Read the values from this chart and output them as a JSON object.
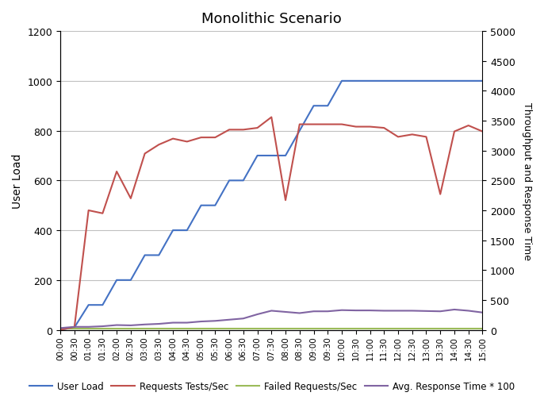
{
  "title": "Monolithic Scenario",
  "ylabel_left": "User Load",
  "ylabel_right": "Throughput and Response Time",
  "ylim_left": [
    0,
    1200
  ],
  "ylim_right": [
    0,
    5000
  ],
  "yticks_left": [
    0,
    200,
    400,
    600,
    800,
    1000,
    1200
  ],
  "yticks_right": [
    0,
    500,
    1000,
    1500,
    2000,
    2500,
    3000,
    3500,
    4000,
    4500,
    5000
  ],
  "time_labels": [
    "00:00",
    "00:30",
    "01:00",
    "01:30",
    "02:00",
    "02:30",
    "03:00",
    "03:30",
    "04:00",
    "04:30",
    "05:00",
    "05:30",
    "06:00",
    "06:30",
    "07:00",
    "07:30",
    "08:00",
    "08:30",
    "09:00",
    "09:30",
    "10:00",
    "10:30",
    "11:00",
    "11:30",
    "12:00",
    "12:30",
    "13:00",
    "13:30",
    "14:00",
    "14:30",
    "15:00"
  ],
  "user_load": [
    0,
    10,
    100,
    100,
    200,
    200,
    300,
    300,
    400,
    400,
    500,
    500,
    600,
    600,
    700,
    700,
    700,
    800,
    900,
    900,
    1000,
    1000,
    1000,
    1000,
    1000,
    1000,
    1000,
    1000,
    1000,
    1000,
    1000
  ],
  "requests_per_sec": [
    0,
    50,
    2000,
    1950,
    2650,
    2200,
    2950,
    3100,
    3200,
    3150,
    3220,
    3220,
    3350,
    3350,
    3380,
    3560,
    2170,
    3440,
    3440,
    3440,
    3440,
    3400,
    3400,
    3380,
    3230,
    3270,
    3230,
    2270,
    3320,
    3420,
    3320
  ],
  "failed_requests": [
    5,
    5,
    5,
    5,
    5,
    5,
    5,
    5,
    5,
    5,
    5,
    5,
    5,
    5,
    5,
    5,
    5,
    5,
    5,
    5,
    5,
    5,
    5,
    5,
    5,
    5,
    5,
    5,
    5,
    5,
    5
  ],
  "avg_response_time": [
    30,
    50,
    50,
    60,
    80,
    75,
    90,
    100,
    120,
    120,
    140,
    150,
    170,
    190,
    260,
    320,
    300,
    280,
    310,
    310,
    330,
    325,
    325,
    320,
    320,
    320,
    315,
    310,
    340,
    320,
    290
  ],
  "colors": {
    "user_load": "#4472C4",
    "requests_per_sec": "#C0504D",
    "failed_requests": "#9BBB59",
    "avg_response_time": "#8064A2"
  },
  "legend_labels": [
    "User Load",
    "Requests Tests/Sec",
    "Failed Requests/Sec",
    "Avg. Response Time * 100"
  ],
  "background_color": "#FFFFFF",
  "grid_color": "#C0C0C0",
  "linewidth": 1.5
}
